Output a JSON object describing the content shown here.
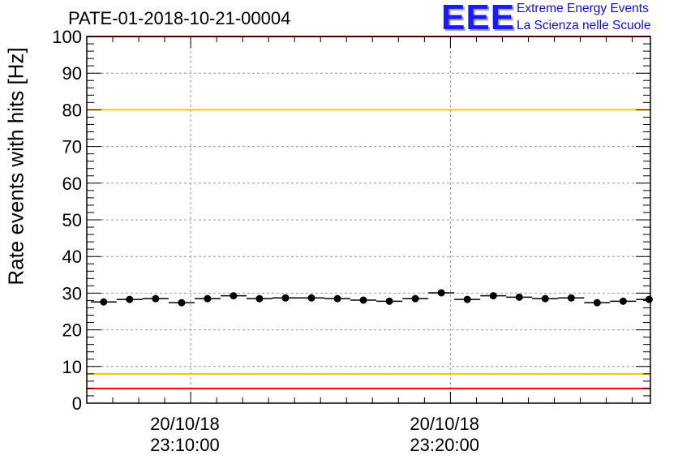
{
  "title": "PATE-01-2018-10-21-00004",
  "logo": {
    "mark": "EEE",
    "line1": "Extreme Energy Events",
    "line2": "La Scienza nelle Scuole",
    "color": "#1a1aff"
  },
  "chart_data": {
    "type": "scatter",
    "title": "PATE-01-2018-10-21-00004",
    "ylabel": "Rate events with hits [Hz]",
    "xlabel": "",
    "ylim": [
      0,
      100
    ],
    "yticks": [
      0,
      10,
      20,
      30,
      40,
      50,
      60,
      70,
      80,
      90,
      100
    ],
    "xticks": [
      {
        "date": "20/10/18",
        "time": "23:10:00",
        "minute": 10
      },
      {
        "date": "20/10/18",
        "time": "23:20:00",
        "minute": 20
      }
    ],
    "xlim_minutes": [
      6.0,
      27.7
    ],
    "grid": true,
    "bin_width_minutes": 1.0,
    "series": [
      {
        "name": "rate",
        "x_minutes": [
          6.65,
          7.65,
          8.65,
          9.65,
          10.65,
          11.65,
          12.65,
          13.65,
          14.65,
          15.65,
          16.65,
          17.65,
          18.65,
          19.65,
          20.65,
          21.65,
          22.65,
          23.65,
          24.65,
          25.65,
          26.65,
          27.65
        ],
        "values": [
          27.6,
          28.3,
          28.5,
          27.4,
          28.5,
          29.3,
          28.5,
          28.7,
          28.7,
          28.5,
          28.1,
          27.8,
          28.5,
          30.1,
          28.3,
          29.3,
          28.9,
          28.5,
          28.7,
          27.4,
          27.8,
          28.3
        ]
      }
    ],
    "reference_lines": [
      {
        "name": "upper-red-limit",
        "value": 100,
        "color": "#ff0000"
      },
      {
        "name": "upper-yellow-limit",
        "value": 80,
        "color": "#f5c400"
      },
      {
        "name": "lower-yellow-limit",
        "value": 8,
        "color": "#f5c400"
      },
      {
        "name": "lower-red-limit",
        "value": 4,
        "color": "#ff0000"
      }
    ]
  }
}
